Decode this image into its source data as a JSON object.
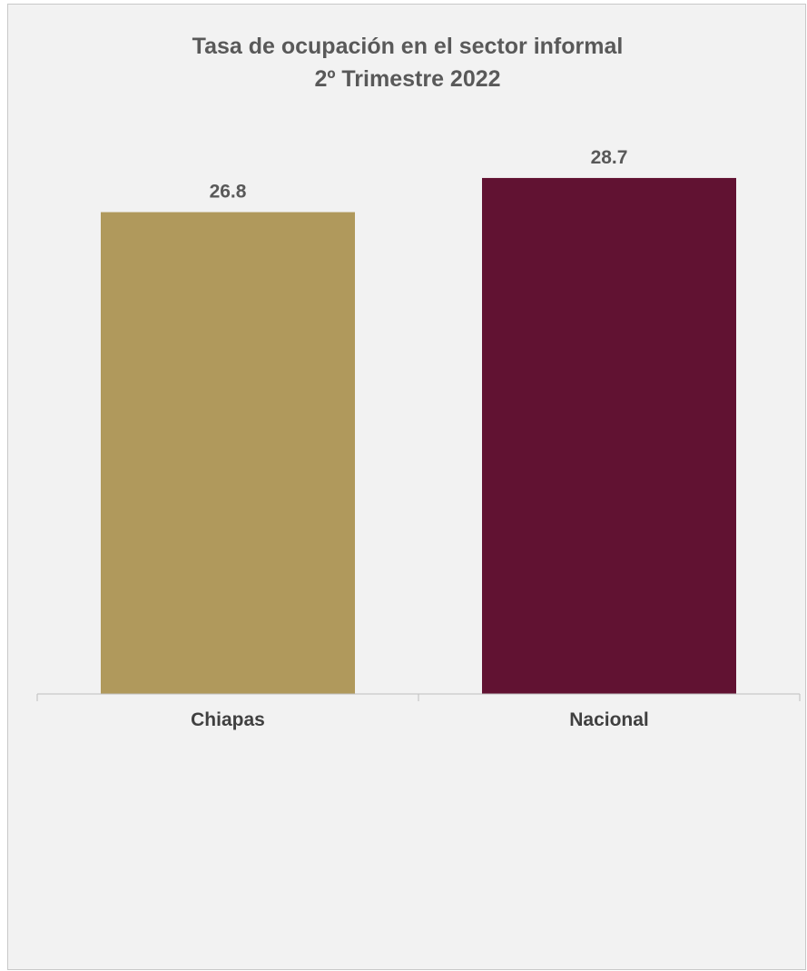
{
  "chart_data": {
    "type": "bar",
    "title": "Tasa de ocupación en el sector informal",
    "subtitle": "2º Trimestre 2022",
    "categories": [
      "Chiapas",
      "Nacional"
    ],
    "values": [
      26.8,
      28.7
    ],
    "value_labels": [
      "26.8",
      "28.7"
    ],
    "colors": [
      "#B0995C",
      "#611232"
    ],
    "ylim": [
      0,
      33.8
    ],
    "grid": false,
    "legend": false
  }
}
